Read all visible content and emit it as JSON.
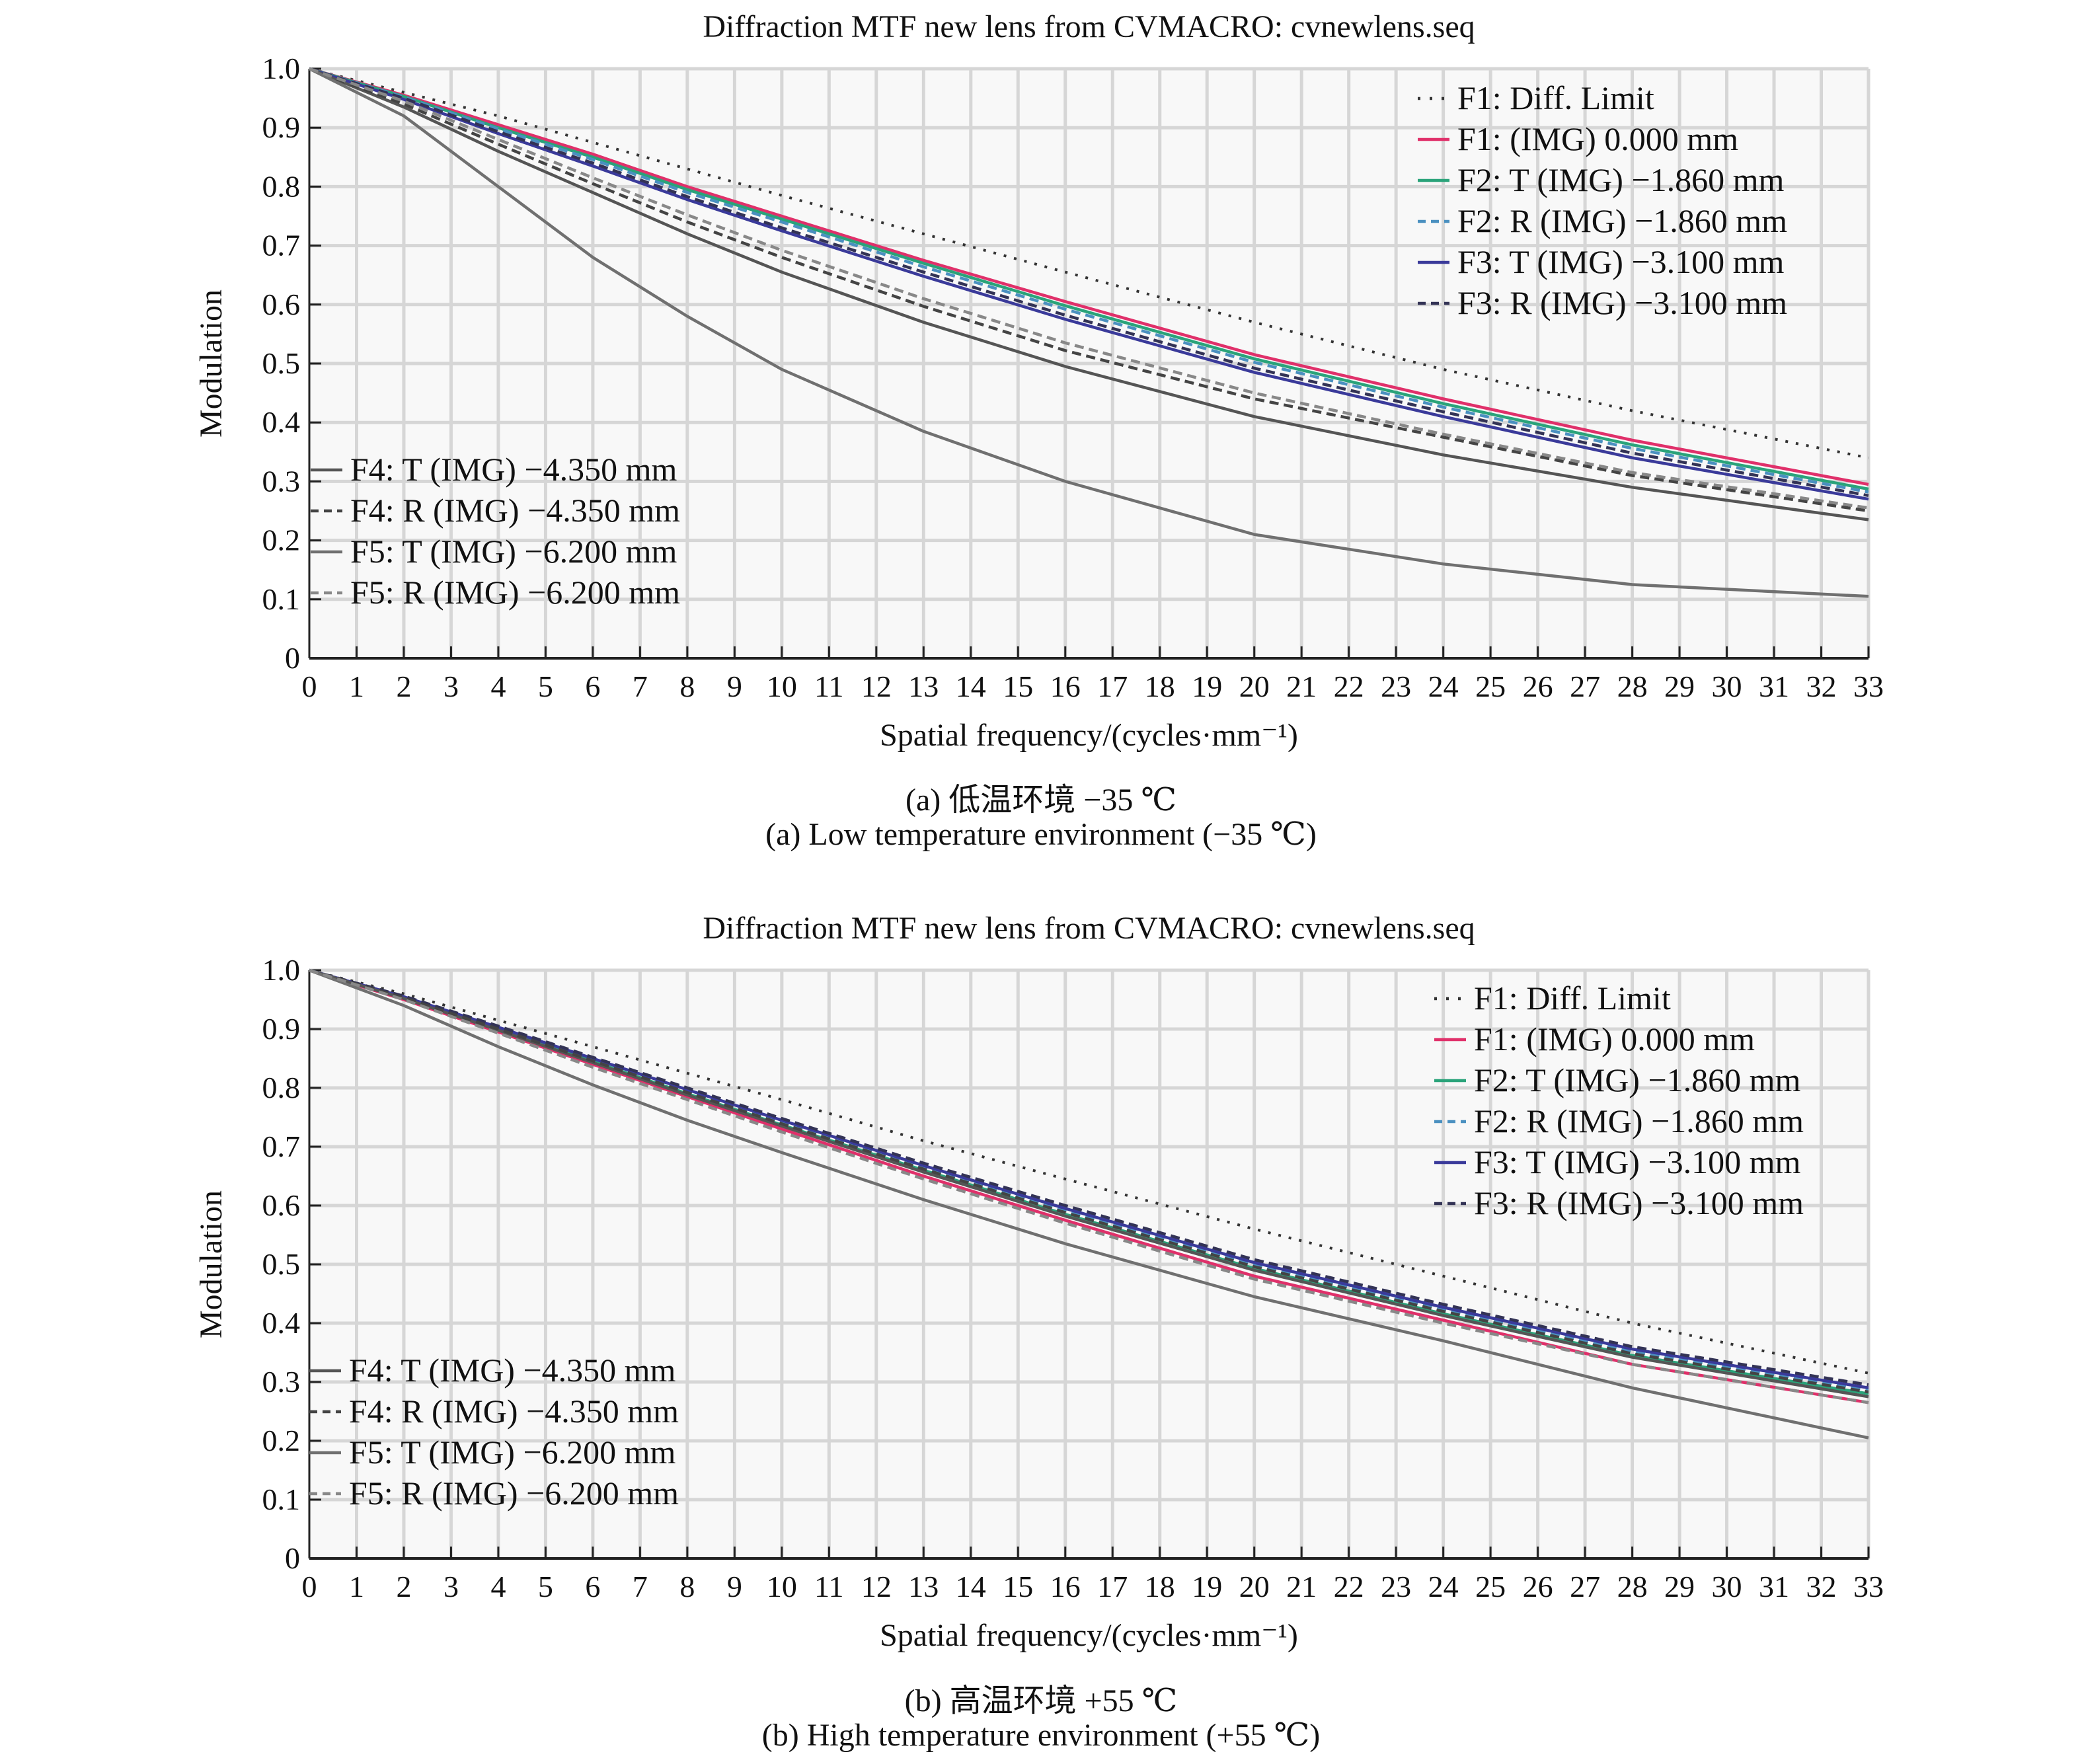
{
  "chart_data": [
    {
      "type": "line",
      "title": "Diffraction MTF new lens from CVMACRO: cvnewlens.seq",
      "xlabel": "Spatial frequency/(cycles·mm⁻¹)",
      "ylabel": "Modulation",
      "xlim": [
        0,
        33
      ],
      "ylim": [
        0,
        1.0
      ],
      "xticks": [
        "0",
        "1",
        "2",
        "3",
        "4",
        "5",
        "6",
        "7",
        "8",
        "9",
        "10",
        "11",
        "12",
        "13",
        "14",
        "15",
        "16",
        "17",
        "18",
        "19",
        "20",
        "21",
        "22",
        "23",
        "24",
        "25",
        "26",
        "27",
        "28",
        "29",
        "30",
        "31",
        "32",
        "33"
      ],
      "yticks": [
        "0",
        "0.1",
        "0.2",
        "0.3",
        "0.4",
        "0.5",
        "0.6",
        "0.7",
        "0.8",
        "0.9",
        "1.0"
      ],
      "grid": true,
      "caption_cn": "(a) 低温环境 −35 ℃",
      "caption_en": "(a) Low temperature environment (−35 ℃)",
      "x": [
        0,
        2,
        4,
        6,
        8,
        10,
        13,
        16,
        20,
        24,
        28,
        33
      ],
      "series": [
        {
          "name": "F1: Diff. Limit",
          "legend": "right",
          "color": "#333333",
          "dash": "dot",
          "values": [
            1,
            0.96,
            0.92,
            0.875,
            0.83,
            0.785,
            0.72,
            0.655,
            0.57,
            0.49,
            0.42,
            0.34
          ]
        },
        {
          "name": "F1: (IMG) 0.000 mm",
          "legend": "right",
          "color": "#e0306a",
          "dash": "solid",
          "values": [
            1,
            0.955,
            0.905,
            0.855,
            0.8,
            0.75,
            0.675,
            0.605,
            0.515,
            0.44,
            0.37,
            0.295
          ]
        },
        {
          "name": "F2: T (IMG) −1.860 mm",
          "legend": "right",
          "color": "#2aa37a",
          "dash": "solid",
          "values": [
            1,
            0.953,
            0.9,
            0.85,
            0.795,
            0.745,
            0.67,
            0.598,
            0.508,
            0.432,
            0.362,
            0.287
          ]
        },
        {
          "name": "F2: R (IMG) −1.860 mm",
          "legend": "right",
          "color": "#4a90c0",
          "dash": "dash",
          "values": [
            1,
            0.952,
            0.898,
            0.846,
            0.79,
            0.74,
            0.664,
            0.592,
            0.502,
            0.426,
            0.356,
            0.282
          ]
        },
        {
          "name": "F3: T (IMG) −3.100 mm",
          "legend": "right",
          "color": "#3a3a9a",
          "dash": "solid",
          "values": [
            1,
            0.948,
            0.89,
            0.835,
            0.778,
            0.725,
            0.648,
            0.575,
            0.485,
            0.41,
            0.34,
            0.27
          ]
        },
        {
          "name": "F3: R (IMG) −3.100 mm",
          "legend": "right",
          "color": "#333355",
          "dash": "dash",
          "values": [
            1,
            0.95,
            0.893,
            0.84,
            0.783,
            0.73,
            0.655,
            0.582,
            0.492,
            0.418,
            0.348,
            0.276
          ]
        },
        {
          "name": "F4: T (IMG) −4.350 mm",
          "legend": "left",
          "color": "#555555",
          "dash": "solid",
          "values": [
            1,
            0.935,
            0.86,
            0.79,
            0.72,
            0.655,
            0.57,
            0.495,
            0.41,
            0.345,
            0.29,
            0.235
          ]
        },
        {
          "name": "F4: R (IMG) −4.350 mm",
          "legend": "left",
          "color": "#444444",
          "dash": "dash",
          "values": [
            1,
            0.94,
            0.872,
            0.805,
            0.74,
            0.68,
            0.597,
            0.522,
            0.44,
            0.375,
            0.31,
            0.25
          ]
        },
        {
          "name": "F5: T (IMG) −6.200 mm",
          "legend": "left",
          "color": "#707070",
          "dash": "solid",
          "values": [
            1,
            0.92,
            0.8,
            0.68,
            0.58,
            0.49,
            0.385,
            0.3,
            0.21,
            0.16,
            0.125,
            0.105
          ]
        },
        {
          "name": "F5: R (IMG) −6.200 mm",
          "legend": "left",
          "color": "#888888",
          "dash": "dash",
          "values": [
            1,
            0.945,
            0.88,
            0.815,
            0.752,
            0.692,
            0.61,
            0.535,
            0.45,
            0.38,
            0.315,
            0.255
          ]
        }
      ]
    },
    {
      "type": "line",
      "title": "Diffraction MTF new lens from CVMACRO: cvnewlens.seq",
      "xlabel": "Spatial frequency/(cycles·mm⁻¹)",
      "ylabel": "Modulation",
      "xlim": [
        0,
        33
      ],
      "ylim": [
        0,
        1.0
      ],
      "xticks": [
        "0",
        "1",
        "2",
        "3",
        "4",
        "5",
        "6",
        "7",
        "8",
        "9",
        "10",
        "11",
        "12",
        "13",
        "14",
        "15",
        "16",
        "17",
        "18",
        "19",
        "20",
        "21",
        "22",
        "23",
        "24",
        "25",
        "26",
        "27",
        "28",
        "29",
        "30",
        "31",
        "32",
        "33"
      ],
      "yticks": [
        "0",
        "0.1",
        "0.2",
        "0.3",
        "0.4",
        "0.5",
        "0.6",
        "0.7",
        "0.8",
        "0.9",
        "1.0"
      ],
      "grid": true,
      "caption_cn": "(b) 高温环境 +55 ℃",
      "caption_en": "(b) High temperature environment (+55 ℃)",
      "x": [
        0,
        2,
        4,
        6,
        8,
        10,
        13,
        16,
        20,
        24,
        28,
        33
      ],
      "series": [
        {
          "name": "F1: Diff. Limit",
          "legend": "right",
          "color": "#333333",
          "dash": "dot",
          "values": [
            1,
            0.96,
            0.915,
            0.87,
            0.825,
            0.78,
            0.71,
            0.645,
            0.56,
            0.48,
            0.4,
            0.315
          ]
        },
        {
          "name": "F1: (IMG) 0.000 mm",
          "legend": "right",
          "color": "#e0306a",
          "dash": "solid",
          "values": [
            1,
            0.95,
            0.895,
            0.84,
            0.785,
            0.73,
            0.65,
            0.575,
            0.48,
            0.405,
            0.33,
            0.265
          ]
        },
        {
          "name": "F2: T (IMG) −1.860 mm",
          "legend": "right",
          "color": "#2aa37a",
          "dash": "solid",
          "values": [
            1,
            0.953,
            0.9,
            0.845,
            0.79,
            0.737,
            0.66,
            0.585,
            0.493,
            0.416,
            0.345,
            0.28
          ]
        },
        {
          "name": "F2: R (IMG) −1.860 mm",
          "legend": "right",
          "color": "#4a90c0",
          "dash": "dash",
          "values": [
            1,
            0.954,
            0.902,
            0.848,
            0.795,
            0.742,
            0.665,
            0.592,
            0.5,
            0.424,
            0.352,
            0.287
          ]
        },
        {
          "name": "F3: T (IMG) −3.100 mm",
          "legend": "right",
          "color": "#3a3a9a",
          "dash": "solid",
          "values": [
            1,
            0.955,
            0.903,
            0.85,
            0.797,
            0.745,
            0.668,
            0.595,
            0.503,
            0.427,
            0.356,
            0.29
          ]
        },
        {
          "name": "F3: R (IMG) −3.100 mm",
          "legend": "right",
          "color": "#333355",
          "dash": "dash",
          "values": [
            1,
            0.956,
            0.905,
            0.852,
            0.8,
            0.748,
            0.672,
            0.6,
            0.508,
            0.432,
            0.36,
            0.295
          ]
        },
        {
          "name": "F4: T (IMG) −4.350 mm",
          "legend": "left",
          "color": "#555555",
          "dash": "solid",
          "values": [
            1,
            0.952,
            0.898,
            0.843,
            0.788,
            0.735,
            0.657,
            0.582,
            0.49,
            0.413,
            0.342,
            0.275
          ]
        },
        {
          "name": "F4: R (IMG) −4.350 mm",
          "legend": "left",
          "color": "#444444",
          "dash": "dash",
          "values": [
            1,
            0.953,
            0.9,
            0.846,
            0.792,
            0.739,
            0.662,
            0.588,
            0.496,
            0.42,
            0.348,
            0.283
          ]
        },
        {
          "name": "F5: T (IMG) −6.200 mm",
          "legend": "left",
          "color": "#707070",
          "dash": "solid",
          "values": [
            1,
            0.94,
            0.87,
            0.805,
            0.745,
            0.69,
            0.61,
            0.535,
            0.445,
            0.37,
            0.29,
            0.205
          ]
        },
        {
          "name": "F5: R (IMG) −6.200 mm",
          "legend": "left",
          "color": "#888888",
          "dash": "dash",
          "values": [
            1,
            0.95,
            0.893,
            0.835,
            0.78,
            0.725,
            0.645,
            0.57,
            0.475,
            0.4,
            0.33,
            0.265
          ]
        }
      ]
    }
  ]
}
